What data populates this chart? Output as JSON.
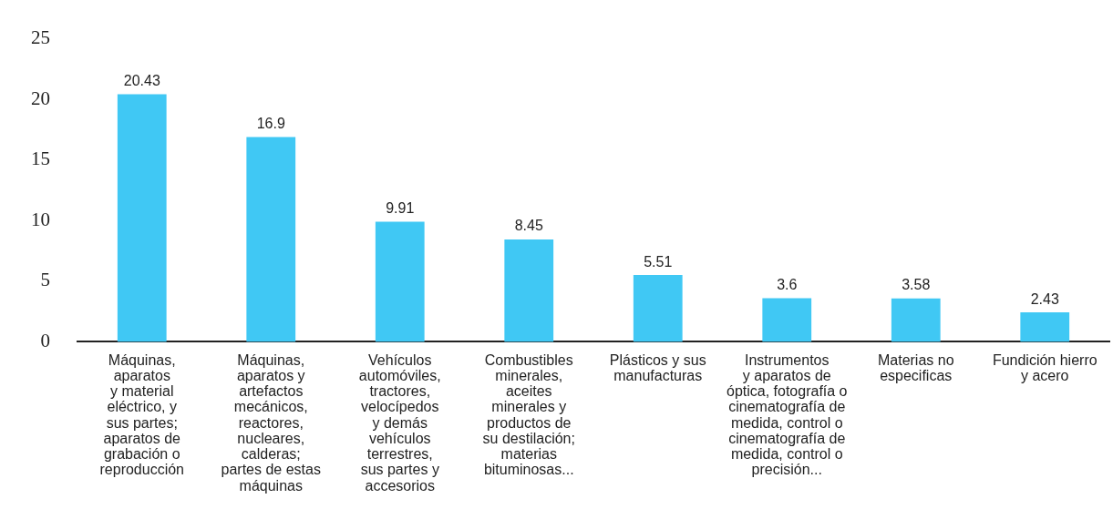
{
  "chart_data": {
    "type": "bar",
    "categories": [
      "Máquinas,\naparatos\ny material\neléctrico, y\nsus partes;\naparatos de\ngrabación o\nreproducción",
      "Máquinas,\naparatos y\nartefactos\nmecánicos,\nreactores,\nnucleares,\ncalderas;\npartes de estas\nmáquinas",
      "Vehículos\nautomóviles,\ntractores,\nvelocípedos\ny demás\nvehículos\nterrestres,\nsus partes y\naccesorios",
      "Combustibles\nminerales,\naceites\nminerales y\nproductos de\nsu destilación;\nmaterias\nbituminosas...",
      "Plásticos y sus\nmanufacturas",
      "Instrumentos\ny aparatos de\nóptica, fotografía o\ncinematografía de\nmedida, control o\ncinematografía de\nmedida, control o\nprecisión...",
      "Materias no\nespecificas",
      "Fundición hierro\ny acero"
    ],
    "values": [
      20.43,
      16.9,
      9.91,
      8.45,
      5.51,
      3.6,
      3.58,
      2.43
    ],
    "color": "#40c8f4",
    "ylim": [
      0,
      25
    ],
    "yticks": [
      0,
      5,
      10,
      15,
      20,
      25
    ],
    "grid": false,
    "data_labels": true
  }
}
